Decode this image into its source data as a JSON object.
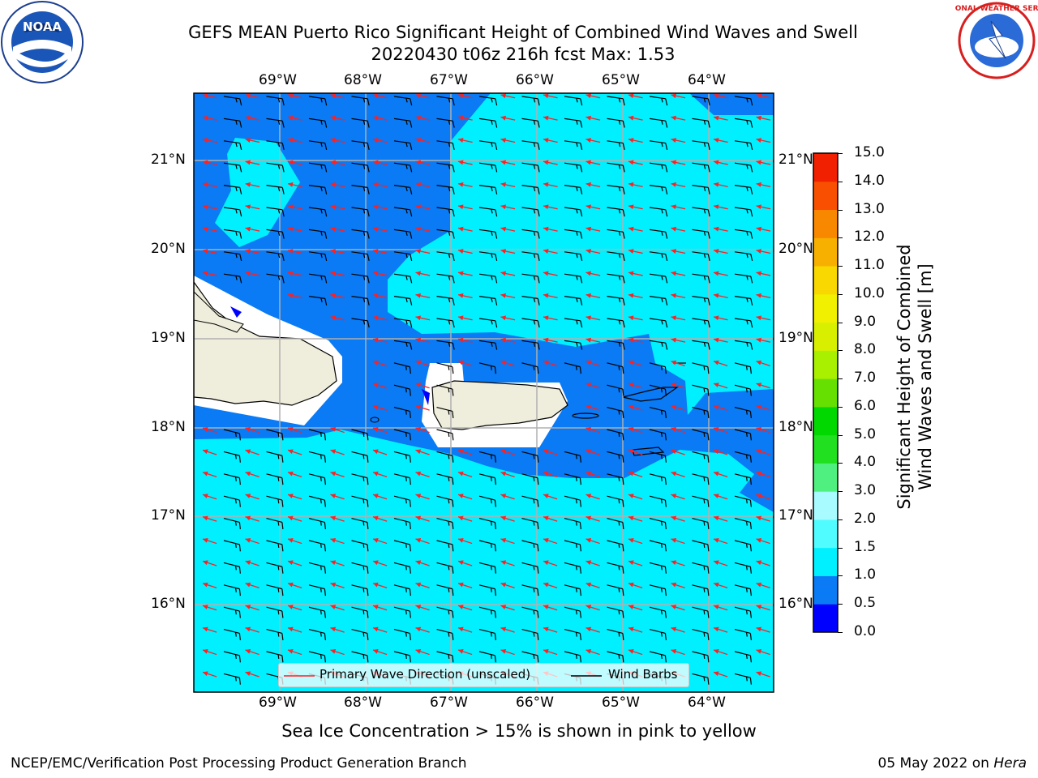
{
  "title_line1": "GEFS MEAN Puerto Rico Significant Height of Combined Wind Waves and Swell",
  "title_line2": "20220430 t06z 216h fcst   Max: 1.53",
  "logos": {
    "left": "noaa-logo",
    "right": "nws-logo",
    "left_text": "NOAA",
    "nws_ring": "NATIONAL WEATHER SERVICE"
  },
  "lon_labels": [
    "69°W",
    "68°W",
    "67°W",
    "66°W",
    "65°W",
    "64°W"
  ],
  "lat_labels": [
    "21°N",
    "20°N",
    "19°N",
    "18°N",
    "17°N",
    "16°N"
  ],
  "legend": {
    "wave": "Primary Wave Direction (unscaled)",
    "wind": "Wind Barbs"
  },
  "colorbar": {
    "label_line1": "Significant Height of Combined",
    "label_line2": "Wind Waves and Swell [m]",
    "ticks": [
      "0.0",
      "0.5",
      "1.0",
      "1.5",
      "2.0",
      "3.0",
      "4.0",
      "5.0",
      "6.0",
      "7.0",
      "8.0",
      "9.0",
      "10.0",
      "11.0",
      "12.0",
      "13.0",
      "14.0",
      "15.0"
    ],
    "colors": [
      "#0000ff",
      "#0a7af5",
      "#00f0ff",
      "#50fcff",
      "#a8fcff",
      "#50f080",
      "#20e020",
      "#00d800",
      "#66e000",
      "#a8f000",
      "#d8f000",
      "#f0f000",
      "#f8d800",
      "#f8b000",
      "#f88800",
      "#f85000",
      "#f02000"
    ]
  },
  "sea_ice_note": "Sea Ice Concentration > 15% is shown in pink to yellow",
  "footer_left": "NCEP/EMC/Verification Post Processing Product Generation Branch",
  "footer_right_date": "05 May 2022 on ",
  "footer_right_host": "Hera",
  "colors": {
    "land": "#efeddc",
    "wave_arrow": "#ff2020",
    "barb": "#000000",
    "grid": "#b0b0b0"
  }
}
